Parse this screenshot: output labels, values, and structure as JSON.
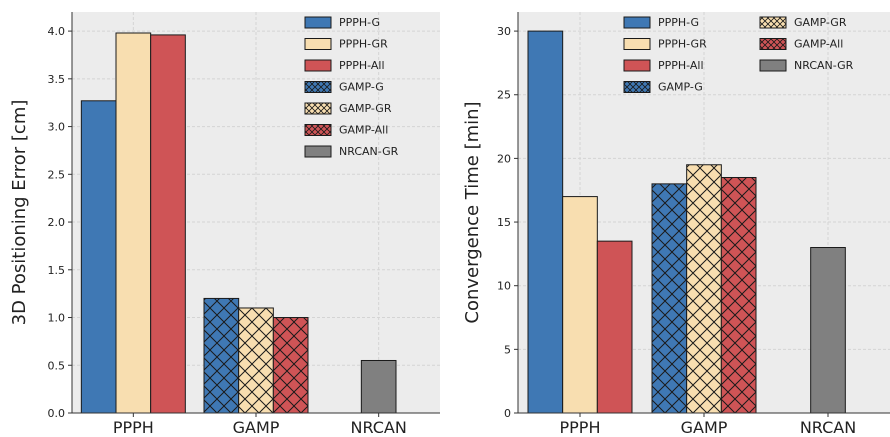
{
  "chart_data": [
    {
      "type": "bar",
      "title": "",
      "xlabel": "",
      "ylabel": "3D Positioning Error [cm]",
      "ylim": [
        0,
        4.2
      ],
      "yticks": [
        0.0,
        0.5,
        1.0,
        1.5,
        2.0,
        2.5,
        3.0,
        3.5,
        4.0
      ],
      "ytick_labels": [
        "0.0",
        "0.5",
        "1.0",
        "1.5",
        "2.0",
        "2.5",
        "3.0",
        "3.5",
        "4.0"
      ],
      "categories": [
        "PPPH",
        "GAMP",
        "NRCAN"
      ],
      "grid": true,
      "legend_position": "top-right",
      "legend_columns": 1,
      "series": [
        {
          "name": "PPPH-G",
          "category": "PPPH",
          "value": 3.27,
          "color": "#3f78b4",
          "hatch": false
        },
        {
          "name": "PPPH-GR",
          "category": "PPPH",
          "value": 3.98,
          "color": "#f8deb0",
          "hatch": false
        },
        {
          "name": "PPPH-All",
          "category": "PPPH",
          "value": 3.96,
          "color": "#cf5456",
          "hatch": false
        },
        {
          "name": "GAMP-G",
          "category": "GAMP",
          "value": 1.2,
          "color": "#3f78b4",
          "hatch": true
        },
        {
          "name": "GAMP-GR",
          "category": "GAMP",
          "value": 1.1,
          "color": "#f8deb0",
          "hatch": true
        },
        {
          "name": "GAMP-All",
          "category": "GAMP",
          "value": 1.0,
          "color": "#cf5456",
          "hatch": true
        },
        {
          "name": "NRCAN-GR",
          "category": "NRCAN",
          "value": 0.55,
          "color": "#808080",
          "hatch": false
        }
      ]
    },
    {
      "type": "bar",
      "title": "",
      "xlabel": "",
      "ylabel": "Convergence Time [min]",
      "ylim": [
        0,
        31.5
      ],
      "yticks": [
        0,
        5,
        10,
        15,
        20,
        25,
        30
      ],
      "ytick_labels": [
        "0",
        "5",
        "10",
        "15",
        "20",
        "25",
        "30"
      ],
      "categories": [
        "PPPH",
        "GAMP",
        "NRCAN"
      ],
      "grid": true,
      "legend_position": "top-right",
      "legend_columns": 2,
      "series": [
        {
          "name": "PPPH-G",
          "category": "PPPH",
          "value": 30,
          "color": "#3f78b4",
          "hatch": false
        },
        {
          "name": "PPPH-GR",
          "category": "PPPH",
          "value": 17,
          "color": "#f8deb0",
          "hatch": false
        },
        {
          "name": "PPPH-All",
          "category": "PPPH",
          "value": 13.5,
          "color": "#cf5456",
          "hatch": false
        },
        {
          "name": "GAMP-G",
          "category": "GAMP",
          "value": 18,
          "color": "#3f78b4",
          "hatch": true
        },
        {
          "name": "GAMP-GR",
          "category": "GAMP",
          "value": 19.5,
          "color": "#f8deb0",
          "hatch": true
        },
        {
          "name": "GAMP-All",
          "category": "GAMP",
          "value": 18.5,
          "color": "#cf5456",
          "hatch": true
        },
        {
          "name": "NRCAN-GR",
          "category": "NRCAN",
          "value": 13,
          "color": "#808080",
          "hatch": false
        }
      ]
    }
  ]
}
